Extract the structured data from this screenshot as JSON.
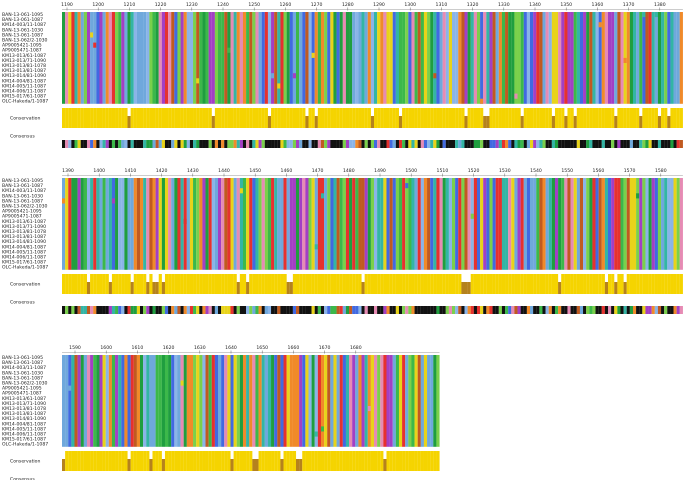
{
  "names": [
    "BAN-13-061-1095",
    "BAN-13-061-1087",
    "KM14-003/11-1087",
    "BAN-13-061-1030",
    "BAN-13-061-1087",
    "BAN-13-062/2-1030",
    "AP9005421-1095",
    "AP9005471-1087",
    "KM13-013/61-1087",
    "KM13-013/71-1090",
    "KM13-013/81-1078",
    "KM13-013/81-1087",
    "KM13-014/81-1090",
    "KM14-004/81-1087",
    "KM14-005/11-1087",
    "KM14-006/11-1087",
    "KM15-017/61-1087",
    "OLC-Hakeda/1-1087"
  ],
  "conservation_label": "Conservation",
  "consensus_label": "Consensus",
  "blocks": [
    {
      "ticks": [
        1190,
        1200,
        1210,
        1220,
        1230,
        1240,
        1250,
        1260,
        1270,
        1280,
        1290,
        1300,
        1310,
        1320,
        1330,
        1340,
        1350,
        1360,
        1370,
        1380
      ]
    },
    {
      "ticks": [
        1390,
        1400,
        1410,
        1420,
        1430,
        1440,
        1450,
        1460,
        1470,
        1480,
        1490,
        1500,
        1510,
        1520,
        1530,
        1540,
        1550,
        1560,
        1570,
        1580
      ]
    },
    {
      "ticks": [
        1590,
        1600,
        1610,
        1620,
        1630,
        1640,
        1650,
        1660,
        1670,
        1680
      ]
    }
  ]
}
